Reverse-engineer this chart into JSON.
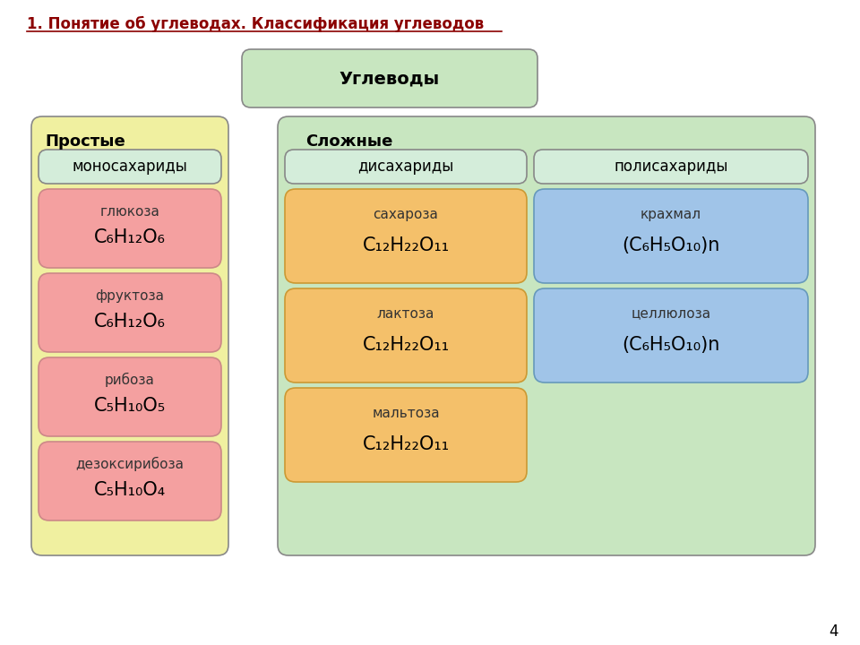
{
  "title": "1. Понятие об углеводах. Классификация углеводов",
  "title_color": "#8B0000",
  "title_underline": true,
  "main_box_text": "Углеводы",
  "main_box_color": "#c8e6c0",
  "left_box_header": "Простые",
  "left_box_bg": "#f0f0a0",
  "right_box_header": "Сложные",
  "right_box_bg": "#c8e6c0",
  "mono_header_text": "моносахариды",
  "mono_header_bg": "#d4edda",
  "di_header_text": "дисахариды",
  "di_header_bg": "#d4edda",
  "poly_header_text": "полисахариды",
  "poly_header_bg": "#d4edda",
  "simple_items": [
    {
      "name": "глюкоза",
      "formula": "C₆H₁₂O₆",
      "bg": "#f4a0a0"
    },
    {
      "name": "фруктоза",
      "formula": "C₆H₁₂O₆",
      "bg": "#f4a0a0"
    },
    {
      "name": "рибоза",
      "formula": "C₅H₁₀O₅",
      "bg": "#f4a0a0"
    },
    {
      "name": "дезоксирибоза",
      "formula": "C₅H₁₀O₄",
      "bg": "#f4a0a0"
    }
  ],
  "di_items": [
    {
      "name": "сахароза",
      "formula": "C₁₂H₂₂O₁₁",
      "bg": "#f4c06a"
    },
    {
      "name": "лактоза",
      "formula": "C₁₂H₂₂O₁₁",
      "bg": "#f4c06a"
    },
    {
      "name": "мальтоза",
      "formula": "C₁₂H₂₂O₁₁",
      "bg": "#f4c06a"
    }
  ],
  "poly_items": [
    {
      "name": "крахмал",
      "formula": "(C₆H₅O₁₀)n",
      "bg": "#a0c4e8"
    },
    {
      "name": "целлюлоза",
      "formula": "(C₆H₅O₁₀)n",
      "bg": "#a0c4e8"
    }
  ],
  "page_number": "4"
}
